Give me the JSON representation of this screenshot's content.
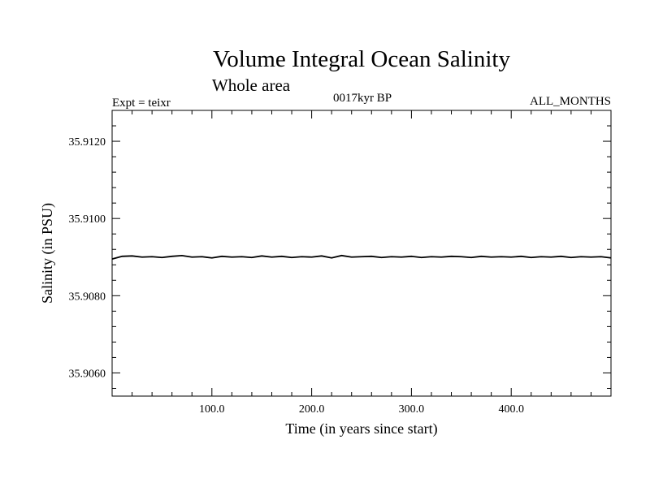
{
  "chart_data": {
    "type": "line",
    "title": "Volume Integral Ocean Salinity",
    "subtitle": "Whole area",
    "expt_label": "Expt = teixr",
    "period_label": "0017kyr BP",
    "months_label": "ALL_MONTHS",
    "xlabel": "Time (in years since start)",
    "ylabel": "Salinity (in PSU)",
    "xlim": [
      0,
      500
    ],
    "ylim": [
      35.9054,
      35.9128
    ],
    "x_ticks": [
      100,
      200,
      300,
      400
    ],
    "x_tick_labels": [
      "100.0",
      "200.0",
      "300.0",
      "400.0"
    ],
    "y_ticks": [
      35.906,
      35.908,
      35.91,
      35.912
    ],
    "y_tick_labels": [
      "35.9060",
      "35.9080",
      "35.9100",
      "35.9120"
    ],
    "grid": false,
    "series": [
      {
        "color": "#000000",
        "x": [
          0,
          10,
          20,
          30,
          40,
          50,
          60,
          70,
          80,
          90,
          100,
          110,
          120,
          130,
          140,
          150,
          160,
          170,
          180,
          190,
          200,
          210,
          220,
          230,
          240,
          250,
          260,
          270,
          280,
          290,
          300,
          310,
          320,
          330,
          340,
          350,
          360,
          370,
          380,
          390,
          400,
          410,
          420,
          430,
          440,
          450,
          460,
          470,
          480,
          490,
          500
        ],
        "values": [
          35.90895,
          35.90902,
          35.90903,
          35.909,
          35.90901,
          35.90899,
          35.90902,
          35.90904,
          35.909,
          35.90901,
          35.90898,
          35.90902,
          35.909,
          35.90901,
          35.90899,
          35.90903,
          35.909,
          35.90902,
          35.90899,
          35.90901,
          35.909,
          35.90903,
          35.90898,
          35.90904,
          35.909,
          35.90901,
          35.90902,
          35.90899,
          35.90901,
          35.909,
          35.90902,
          35.90899,
          35.90901,
          35.909,
          35.90902,
          35.90901,
          35.90899,
          35.90902,
          35.909,
          35.90901,
          35.909,
          35.90902,
          35.90899,
          35.90901,
          35.909,
          35.90902,
          35.90899,
          35.90901,
          35.909,
          35.90901,
          35.90898
        ]
      }
    ]
  }
}
